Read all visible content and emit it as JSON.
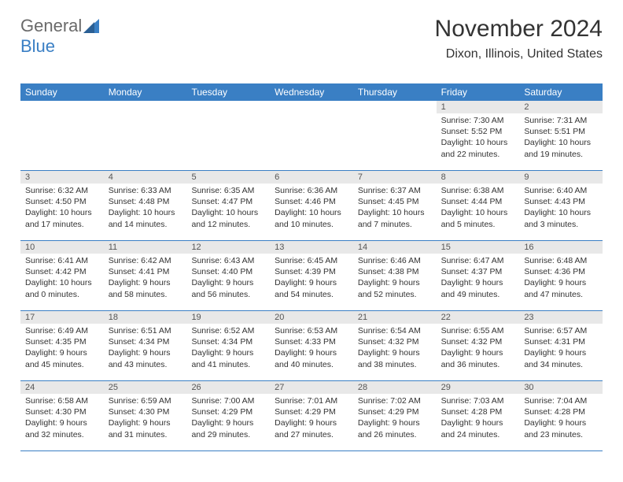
{
  "brand": {
    "name_a": "General",
    "name_b": "Blue"
  },
  "header": {
    "title": "November 2024",
    "location": "Dixon, Illinois, United States"
  },
  "colors": {
    "header_bg": "#3a7fc4",
    "header_text": "#ffffff",
    "daynum_bg": "#e8e8e8",
    "row_border": "#3a7fc4",
    "text": "#333333",
    "logo_gray": "#6a6a6a",
    "logo_blue": "#3a7fc4"
  },
  "typography": {
    "title_fontsize": 30,
    "location_fontsize": 16,
    "dayheader_fontsize": 12,
    "cell_fontsize": 10.5,
    "font_family": "Arial"
  },
  "day_names": [
    "Sunday",
    "Monday",
    "Tuesday",
    "Wednesday",
    "Thursday",
    "Friday",
    "Saturday"
  ],
  "grid": {
    "columns": 7,
    "rows": 5,
    "first_weekday_index": 5,
    "days_in_month": 30
  },
  "days": {
    "1": {
      "sunrise": "7:30 AM",
      "sunset": "5:52 PM",
      "daylight": "10 hours and 22 minutes."
    },
    "2": {
      "sunrise": "7:31 AM",
      "sunset": "5:51 PM",
      "daylight": "10 hours and 19 minutes."
    },
    "3": {
      "sunrise": "6:32 AM",
      "sunset": "4:50 PM",
      "daylight": "10 hours and 17 minutes."
    },
    "4": {
      "sunrise": "6:33 AM",
      "sunset": "4:48 PM",
      "daylight": "10 hours and 14 minutes."
    },
    "5": {
      "sunrise": "6:35 AM",
      "sunset": "4:47 PM",
      "daylight": "10 hours and 12 minutes."
    },
    "6": {
      "sunrise": "6:36 AM",
      "sunset": "4:46 PM",
      "daylight": "10 hours and 10 minutes."
    },
    "7": {
      "sunrise": "6:37 AM",
      "sunset": "4:45 PM",
      "daylight": "10 hours and 7 minutes."
    },
    "8": {
      "sunrise": "6:38 AM",
      "sunset": "4:44 PM",
      "daylight": "10 hours and 5 minutes."
    },
    "9": {
      "sunrise": "6:40 AM",
      "sunset": "4:43 PM",
      "daylight": "10 hours and 3 minutes."
    },
    "10": {
      "sunrise": "6:41 AM",
      "sunset": "4:42 PM",
      "daylight": "10 hours and 0 minutes."
    },
    "11": {
      "sunrise": "6:42 AM",
      "sunset": "4:41 PM",
      "daylight": "9 hours and 58 minutes."
    },
    "12": {
      "sunrise": "6:43 AM",
      "sunset": "4:40 PM",
      "daylight": "9 hours and 56 minutes."
    },
    "13": {
      "sunrise": "6:45 AM",
      "sunset": "4:39 PM",
      "daylight": "9 hours and 54 minutes."
    },
    "14": {
      "sunrise": "6:46 AM",
      "sunset": "4:38 PM",
      "daylight": "9 hours and 52 minutes."
    },
    "15": {
      "sunrise": "6:47 AM",
      "sunset": "4:37 PM",
      "daylight": "9 hours and 49 minutes."
    },
    "16": {
      "sunrise": "6:48 AM",
      "sunset": "4:36 PM",
      "daylight": "9 hours and 47 minutes."
    },
    "17": {
      "sunrise": "6:49 AM",
      "sunset": "4:35 PM",
      "daylight": "9 hours and 45 minutes."
    },
    "18": {
      "sunrise": "6:51 AM",
      "sunset": "4:34 PM",
      "daylight": "9 hours and 43 minutes."
    },
    "19": {
      "sunrise": "6:52 AM",
      "sunset": "4:34 PM",
      "daylight": "9 hours and 41 minutes."
    },
    "20": {
      "sunrise": "6:53 AM",
      "sunset": "4:33 PM",
      "daylight": "9 hours and 40 minutes."
    },
    "21": {
      "sunrise": "6:54 AM",
      "sunset": "4:32 PM",
      "daylight": "9 hours and 38 minutes."
    },
    "22": {
      "sunrise": "6:55 AM",
      "sunset": "4:32 PM",
      "daylight": "9 hours and 36 minutes."
    },
    "23": {
      "sunrise": "6:57 AM",
      "sunset": "4:31 PM",
      "daylight": "9 hours and 34 minutes."
    },
    "24": {
      "sunrise": "6:58 AM",
      "sunset": "4:30 PM",
      "daylight": "9 hours and 32 minutes."
    },
    "25": {
      "sunrise": "6:59 AM",
      "sunset": "4:30 PM",
      "daylight": "9 hours and 31 minutes."
    },
    "26": {
      "sunrise": "7:00 AM",
      "sunset": "4:29 PM",
      "daylight": "9 hours and 29 minutes."
    },
    "27": {
      "sunrise": "7:01 AM",
      "sunset": "4:29 PM",
      "daylight": "9 hours and 27 minutes."
    },
    "28": {
      "sunrise": "7:02 AM",
      "sunset": "4:29 PM",
      "daylight": "9 hours and 26 minutes."
    },
    "29": {
      "sunrise": "7:03 AM",
      "sunset": "4:28 PM",
      "daylight": "9 hours and 24 minutes."
    },
    "30": {
      "sunrise": "7:04 AM",
      "sunset": "4:28 PM",
      "daylight": "9 hours and 23 minutes."
    }
  },
  "labels": {
    "sunrise_prefix": "Sunrise: ",
    "sunset_prefix": "Sunset: ",
    "daylight_prefix": "Daylight: "
  }
}
